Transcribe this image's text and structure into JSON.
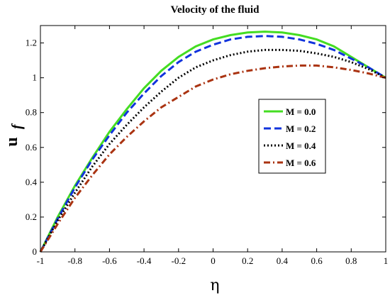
{
  "chart_data": {
    "type": "line",
    "title": "Velocity of the fluid",
    "xlabel": "η",
    "ylabel": "u",
    "ylabel_subscript": "f",
    "xlim": [
      -1,
      1
    ],
    "ylim": [
      0,
      1.3
    ],
    "xticks": [
      "-1",
      "-0.8",
      "-0.6",
      "-0.4",
      "-0.2",
      "0",
      "0.2",
      "0.4",
      "0.6",
      "0.8",
      "1"
    ],
    "yticks": [
      "0",
      "0.2",
      "0.4",
      "0.6",
      "0.8",
      "1",
      "1.2"
    ],
    "legend_position": "center-right",
    "x": [
      -1,
      -0.9,
      -0.8,
      -0.7,
      -0.6,
      -0.5,
      -0.4,
      -0.3,
      -0.2,
      -0.1,
      0,
      0.1,
      0.2,
      0.3,
      0.4,
      0.5,
      0.6,
      0.7,
      0.8,
      0.9,
      1
    ],
    "series": [
      {
        "name": "M = 0.0",
        "color": "#44dd22",
        "dash": "solid",
        "values": [
          0,
          0.2,
          0.38,
          0.54,
          0.69,
          0.82,
          0.94,
          1.04,
          1.12,
          1.18,
          1.22,
          1.245,
          1.26,
          1.265,
          1.26,
          1.245,
          1.22,
          1.18,
          1.12,
          1.06,
          1.0
        ]
      },
      {
        "name": "M = 0.2",
        "color": "#1133dd",
        "dash": "dashed",
        "values": [
          0,
          0.19,
          0.37,
          0.53,
          0.67,
          0.8,
          0.91,
          1.01,
          1.09,
          1.15,
          1.19,
          1.22,
          1.235,
          1.24,
          1.235,
          1.22,
          1.195,
          1.16,
          1.11,
          1.06,
          1.0
        ]
      },
      {
        "name": "M = 0.4",
        "color": "#000000",
        "dash": "dotted",
        "values": [
          0,
          0.18,
          0.34,
          0.49,
          0.62,
          0.73,
          0.83,
          0.92,
          1.0,
          1.06,
          1.1,
          1.13,
          1.15,
          1.16,
          1.16,
          1.155,
          1.14,
          1.12,
          1.09,
          1.05,
          1.0
        ]
      },
      {
        "name": "M = 0.6",
        "color": "#aa3311",
        "dash": "dashdot",
        "values": [
          0,
          0.16,
          0.31,
          0.44,
          0.56,
          0.66,
          0.75,
          0.83,
          0.89,
          0.95,
          0.99,
          1.02,
          1.04,
          1.055,
          1.065,
          1.07,
          1.07,
          1.06,
          1.045,
          1.025,
          1.0
        ]
      }
    ]
  }
}
